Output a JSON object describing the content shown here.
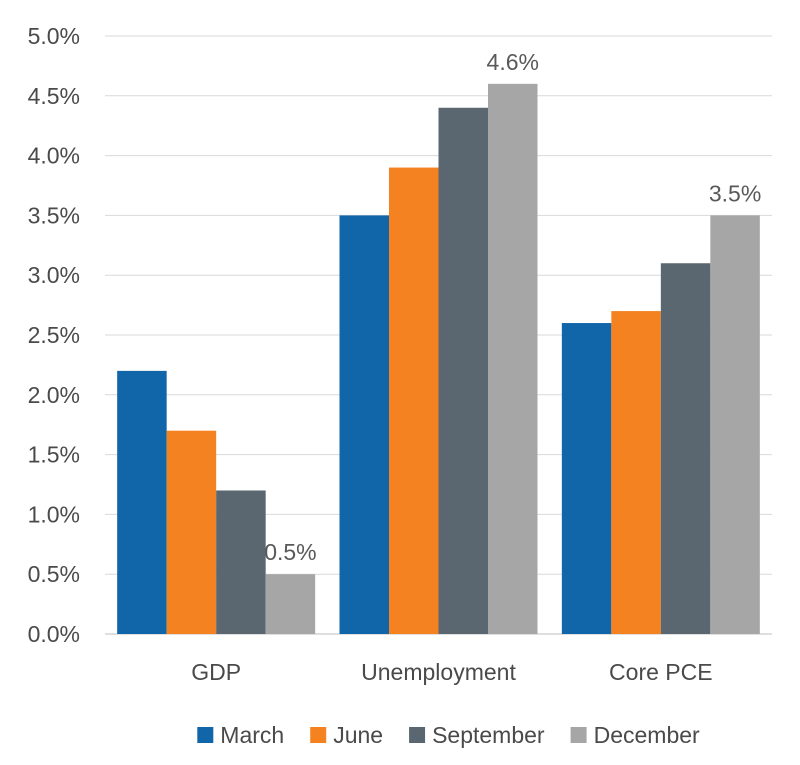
{
  "chart_data": {
    "type": "bar",
    "categories": [
      "GDP",
      "Unemployment",
      "Core PCE"
    ],
    "series": [
      {
        "name": "March",
        "values": [
          2.2,
          3.5,
          2.6
        ],
        "color": "#1066A8"
      },
      {
        "name": "June",
        "values": [
          1.7,
          3.9,
          2.7
        ],
        "color": "#F58220"
      },
      {
        "name": "September",
        "values": [
          1.2,
          4.4,
          3.1
        ],
        "color": "#5A6670"
      },
      {
        "name": "December",
        "values": [
          0.5,
          4.6,
          3.5
        ],
        "color": "#A6A6A6"
      }
    ],
    "data_labels": [
      {
        "series": 3,
        "category": 0,
        "text": "0.5%"
      },
      {
        "series": 3,
        "category": 1,
        "text": "4.6%"
      },
      {
        "series": 3,
        "category": 2,
        "text": "3.5%"
      }
    ],
    "y_ticks": [
      "0.0%",
      "0.5%",
      "1.0%",
      "1.5%",
      "2.0%",
      "2.5%",
      "3.0%",
      "3.5%",
      "4.0%",
      "4.5%",
      "5.0%"
    ],
    "ylim": [
      0,
      5
    ],
    "title": "",
    "xlabel": "",
    "ylabel": "",
    "grid": true,
    "legend_position": "bottom",
    "grid_color": "#D9D9D9",
    "axis_color": "#BFBFBF"
  }
}
